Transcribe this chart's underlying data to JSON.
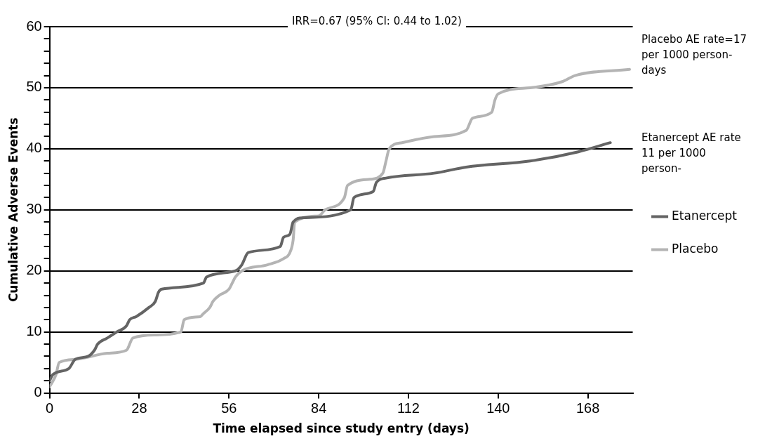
{
  "chart_data": {
    "type": "line",
    "xlabel": "Time elapsed since study entry (days)",
    "ylabel": "Cumulative Adverse Events",
    "xlim": [
      0,
      182
    ],
    "xticks": [
      0,
      28,
      56,
      84,
      112,
      140,
      168
    ],
    "ylim": [
      0,
      60
    ],
    "yticks": [
      0,
      {
        "value": 2,
        "label": null
      },
      {
        "value": 4,
        "label": null
      },
      {
        "value": 6,
        "label": null
      },
      {
        "value": 8,
        "label": null
      },
      10,
      {
        "value": 12,
        "label": null
      },
      {
        "value": 14,
        "label": null
      },
      {
        "value": 16,
        "label": null
      },
      {
        "value": 18,
        "label": null
      },
      20,
      {
        "value": 22,
        "label": null
      },
      {
        "value": 24,
        "label": null
      },
      {
        "value": 26,
        "label": null
      },
      {
        "value": 28,
        "label": null
      },
      30,
      {
        "value": 32,
        "label": null
      },
      {
        "value": 34,
        "label": null
      },
      {
        "value": 36,
        "label": null
      },
      {
        "value": 38,
        "label": null
      },
      40,
      {
        "value": 42,
        "label": null
      },
      {
        "value": 44,
        "label": null
      },
      {
        "value": 46,
        "label": null
      },
      {
        "value": 48,
        "label": null
      },
      50,
      {
        "value": 52,
        "label": null
      },
      {
        "value": 54,
        "label": null
      },
      {
        "value": 56,
        "label": null
      },
      {
        "value": 58,
        "label": null
      },
      60
    ],
    "grid": "y",
    "legend": "right",
    "marker": "none",
    "line_style": "solid",
    "annotations": [
      "IRR=0.67 (95% CI: 0.44 to 1.02)",
      "Placebo AE rate=17 per 1000 person-days",
      "Etanercept AE rate 11 per 1000 person-"
    ],
    "series": [
      {
        "name": "Etanercept",
        "color": "#646464",
        "x": [
          0,
          1,
          6,
          8,
          12,
          14,
          15,
          18,
          21,
          24,
          25,
          27,
          31,
          33,
          34,
          35,
          48,
          49,
          58,
          60,
          62,
          72,
          73,
          75,
          76,
          79,
          94,
          95,
          101,
          102,
          105,
          120,
          130,
          150,
          165,
          175
        ],
        "values": [
          2,
          3,
          4,
          5.5,
          6,
          7,
          8,
          9,
          10,
          11,
          12,
          12.5,
          14,
          15,
          16.5,
          17,
          18,
          19,
          20,
          21,
          23,
          24,
          25.5,
          26,
          28,
          28.7,
          30,
          32,
          33,
          34.5,
          35.2,
          36,
          37,
          38,
          39.5,
          41
        ]
      },
      {
        "name": "Placebo",
        "color": "#b4b4b4",
        "x": [
          0,
          2,
          3,
          8,
          18,
          24,
          26,
          33,
          41,
          42,
          47,
          48,
          50,
          51,
          53,
          56,
          57,
          58,
          60,
          68,
          73,
          75,
          76,
          76.5,
          84,
          86,
          92,
          93,
          100,
          104,
          105,
          106,
          110,
          120,
          130,
          132,
          138,
          139,
          140,
          150,
          160,
          164,
          181
        ],
        "values": [
          1,
          3,
          5,
          5.5,
          6.5,
          7,
          9,
          9.5,
          10,
          12,
          12.5,
          13,
          14,
          15,
          16,
          17,
          18,
          19,
          20,
          21,
          22,
          23,
          25,
          28,
          29,
          30,
          32,
          34,
          35,
          36,
          38,
          40,
          41,
          42,
          43,
          45,
          46,
          48,
          49,
          50,
          51,
          52,
          53
        ]
      }
    ]
  }
}
